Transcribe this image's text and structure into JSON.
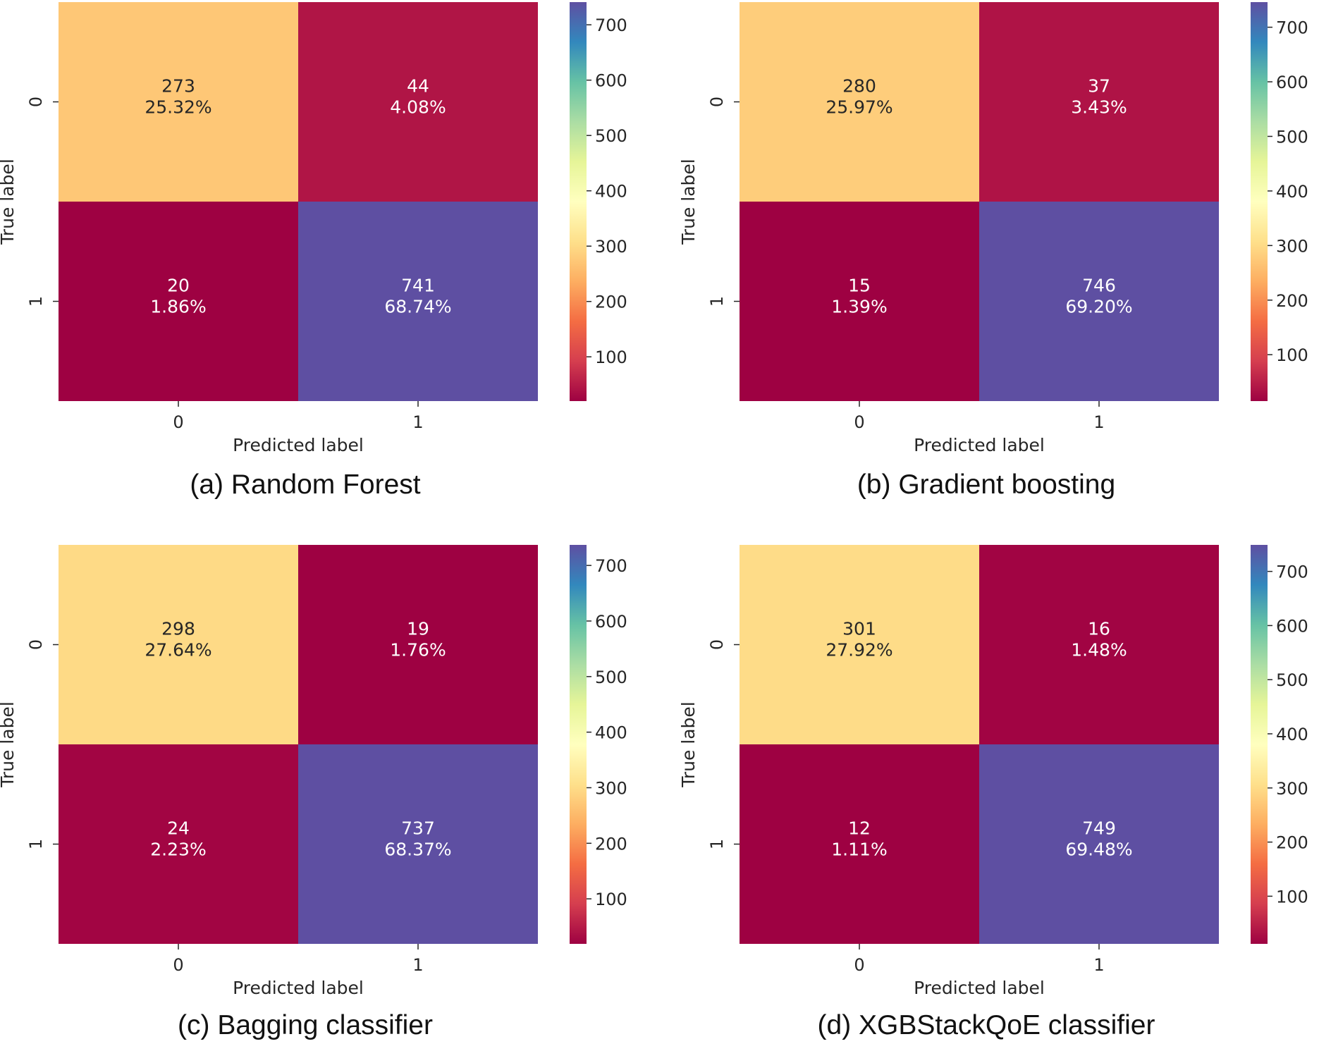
{
  "colors": {
    "spectral": [
      "#9e0142",
      "#d53e4f",
      "#f46d43",
      "#fdae61",
      "#fee08b",
      "#ffffbf",
      "#e6f598",
      "#abdda4",
      "#66c2a5",
      "#3288bd",
      "#5e4fa2"
    ],
    "text_dark": "#262626",
    "text_light": "#ffffff",
    "background": "#ffffff"
  },
  "chart_data": [
    {
      "type": "heatmap",
      "panel_label": "(a) Random Forest",
      "xlabel": "Predicted label",
      "ylabel": "True label",
      "x_ticks": [
        "0",
        "1"
      ],
      "y_ticks": [
        "0",
        "1"
      ],
      "matrix": [
        [
          273,
          44
        ],
        [
          20,
          741
        ]
      ],
      "percent_labels": [
        [
          "25.32%",
          "4.08%"
        ],
        [
          "1.86%",
          "68.74%"
        ]
      ],
      "colorbar": {
        "min": 20,
        "max": 741,
        "ticks": [
          100,
          200,
          300,
          400,
          500,
          600,
          700
        ]
      },
      "colormap": "Spectral"
    },
    {
      "type": "heatmap",
      "panel_label": "(b) Gradient boosting",
      "xlabel": "Predicted label",
      "ylabel": "True label",
      "x_ticks": [
        "0",
        "1"
      ],
      "y_ticks": [
        "0",
        "1"
      ],
      "matrix": [
        [
          280,
          37
        ],
        [
          15,
          746
        ]
      ],
      "percent_labels": [
        [
          "25.97%",
          "3.43%"
        ],
        [
          "1.39%",
          "69.20%"
        ]
      ],
      "colorbar": {
        "min": 15,
        "max": 746,
        "ticks": [
          100,
          200,
          300,
          400,
          500,
          600,
          700
        ]
      },
      "colormap": "Spectral"
    },
    {
      "type": "heatmap",
      "panel_label": "(c)  Bagging classifier",
      "xlabel": "Predicted label",
      "ylabel": "True label",
      "x_ticks": [
        "0",
        "1"
      ],
      "y_ticks": [
        "0",
        "1"
      ],
      "matrix": [
        [
          298,
          19
        ],
        [
          24,
          737
        ]
      ],
      "percent_labels": [
        [
          "27.64%",
          "1.76%"
        ],
        [
          "2.23%",
          "68.37%"
        ]
      ],
      "colorbar": {
        "min": 19,
        "max": 737,
        "ticks": [
          100,
          200,
          300,
          400,
          500,
          600,
          700
        ]
      },
      "colormap": "Spectral"
    },
    {
      "type": "heatmap",
      "panel_label": "(d) XGBStackQoE classifier",
      "xlabel": "Predicted label",
      "ylabel": "True label",
      "x_ticks": [
        "0",
        "1"
      ],
      "y_ticks": [
        "0",
        "1"
      ],
      "matrix": [
        [
          301,
          16
        ],
        [
          12,
          749
        ]
      ],
      "percent_labels": [
        [
          "27.92%",
          "1.48%"
        ],
        [
          "1.11%",
          "69.48%"
        ]
      ],
      "colorbar": {
        "min": 12,
        "max": 749,
        "ticks": [
          100,
          200,
          300,
          400,
          500,
          600,
          700
        ]
      },
      "colormap": "Spectral"
    }
  ]
}
